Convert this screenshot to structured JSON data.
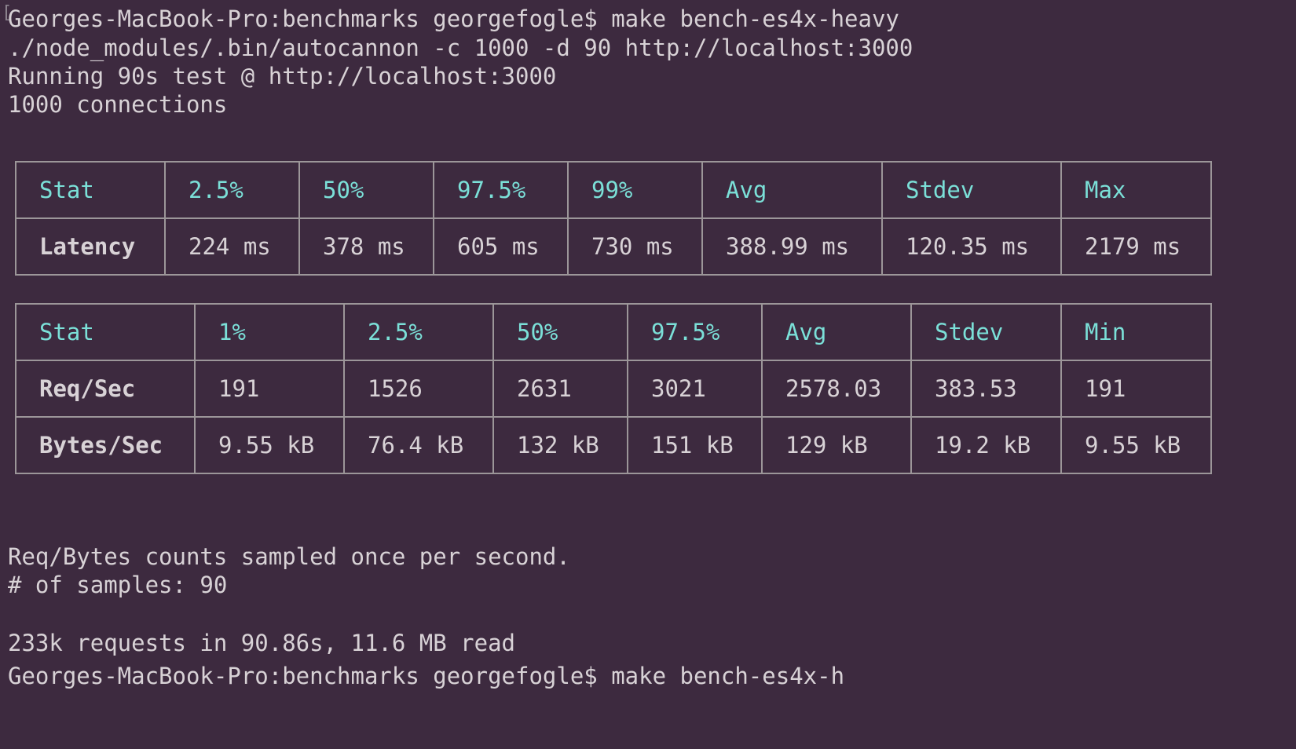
{
  "terminal": {
    "colors": {
      "background": "#3d2a3f",
      "text": "#d8d2d6",
      "header": "#7be0d8",
      "border": "#9c9699"
    },
    "lines": {
      "prompt": "Georges-MacBook-Pro:benchmarks georgefogle$ make bench-es4x-heavy",
      "command": "./node_modules/.bin/autocannon -c 1000 -d 90 http://localhost:3000",
      "running": "Running 90s test @ http://localhost:3000",
      "connections": "1000 connections",
      "sampled": "Req/Bytes counts sampled once per second.",
      "samples": "# of samples: 90",
      "summary": "233k requests in 90.86s, 11.6 MB read",
      "next_prompt_partial": "Georges-MacBook-Pro:benchmarks georgefogle$ make bench-es4x-h"
    },
    "latency_table": {
      "headers": [
        "Stat",
        "2.5%",
        "50%",
        "97.5%",
        "99%",
        "Avg",
        "Stdev",
        "Max"
      ],
      "rows": [
        [
          "Latency",
          "224 ms",
          "378 ms",
          "605 ms",
          "730 ms",
          "388.99 ms",
          "120.35 ms",
          "2179 ms"
        ]
      ]
    },
    "throughput_table": {
      "headers": [
        "Stat",
        "1%",
        "2.5%",
        "50%",
        "97.5%",
        "Avg",
        "Stdev",
        "Min"
      ],
      "rows": [
        [
          "Req/Sec",
          "191",
          "1526",
          "2631",
          "3021",
          "2578.03",
          "383.53",
          "191"
        ],
        [
          "Bytes/Sec",
          "9.55 kB",
          "76.4 kB",
          "132 kB",
          "151 kB",
          "129 kB",
          "19.2 kB",
          "9.55 kB"
        ]
      ]
    }
  }
}
